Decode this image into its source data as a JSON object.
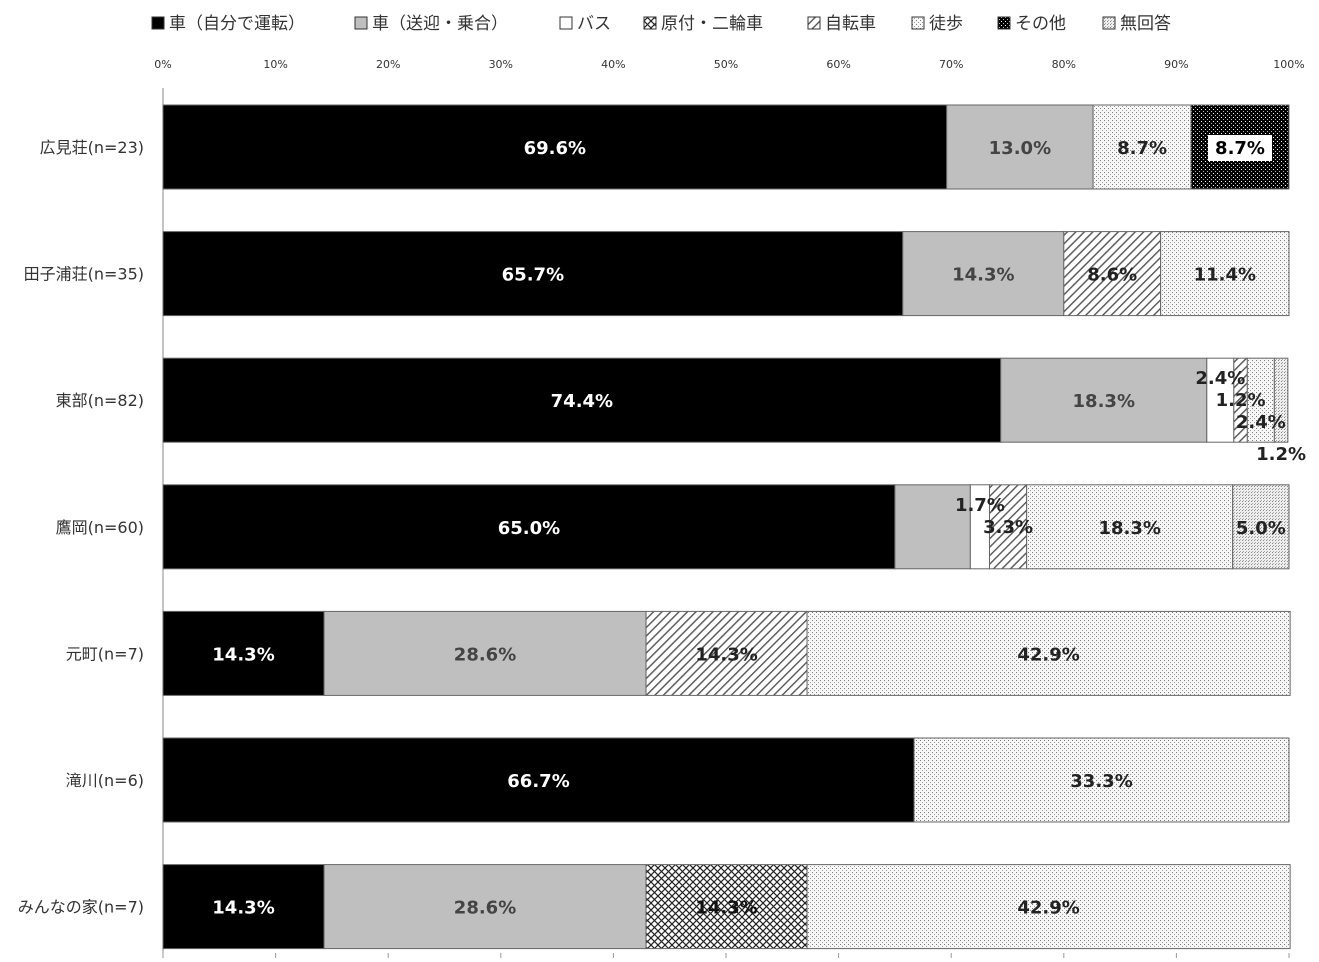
{
  "chart_data": {
    "type": "bar",
    "orientation": "horizontal",
    "stacked": "percent",
    "xlim": [
      0,
      100
    ],
    "x_ticks": [
      "0%",
      "10%",
      "20%",
      "30%",
      "40%",
      "50%",
      "60%",
      "70%",
      "80%",
      "90%",
      "100%"
    ],
    "grid": false,
    "legend_position": "top",
    "categories": [
      "広見荘(n=23)",
      "田子浦荘(n=35)",
      "東部(n=82)",
      "鷹岡(n=60)",
      "元町(n=7)",
      "滝川(n=6)",
      "みんなの家(n=7)"
    ],
    "series": [
      {
        "name": "車（自分で運転）",
        "pattern": "solid-black",
        "values": [
          69.6,
          65.7,
          74.4,
          65.0,
          14.3,
          66.7,
          14.3
        ],
        "labels": [
          "69.6%",
          "65.7%",
          "74.4%",
          "65.0%",
          "14.3%",
          "66.7%",
          "14.3%"
        ]
      },
      {
        "name": "車（送迎・乗合）",
        "pattern": "solid-gray",
        "values": [
          13.0,
          14.3,
          18.3,
          6.7,
          28.6,
          0,
          28.6
        ],
        "labels": [
          "13.0%",
          "14.3%",
          "18.3%",
          "",
          "28.6%",
          "",
          "28.6%"
        ]
      },
      {
        "name": "バス",
        "pattern": "white",
        "values": [
          0,
          0,
          2.4,
          1.7,
          0,
          0,
          0
        ],
        "labels": [
          "",
          "",
          "2.4%",
          "1.7%",
          "",
          "",
          ""
        ]
      },
      {
        "name": "原付・二輪車",
        "pattern": "cross-hatch",
        "values": [
          0,
          0,
          0,
          0,
          0,
          0,
          14.3
        ],
        "labels": [
          "",
          "",
          "",
          "",
          "",
          "",
          "14.3%"
        ]
      },
      {
        "name": "自転車",
        "pattern": "diagonal",
        "values": [
          0,
          8.6,
          1.2,
          3.3,
          14.3,
          0,
          0
        ],
        "labels": [
          "",
          "8.6%",
          "1.2%",
          "3.3%",
          "14.3%",
          "",
          ""
        ]
      },
      {
        "name": "徒歩",
        "pattern": "dots",
        "values": [
          8.7,
          11.4,
          2.4,
          18.3,
          42.9,
          33.3,
          42.9
        ],
        "labels": [
          "8.7%",
          "11.4%",
          "2.4%",
          "18.3%",
          "42.9%",
          "33.3%",
          "42.9%"
        ]
      },
      {
        "name": "その他",
        "pattern": "dense-black",
        "values": [
          8.7,
          0,
          0,
          0,
          0,
          0,
          0
        ],
        "labels": [
          "8.7%",
          "",
          "",
          "",
          "",
          "",
          ""
        ]
      },
      {
        "name": "無回答",
        "pattern": "fine-dots",
        "values": [
          0,
          0,
          1.2,
          5.0,
          0,
          0,
          0
        ],
        "labels": [
          "",
          "",
          "1.2%",
          "5.0%",
          "",
          "",
          ""
        ]
      }
    ]
  }
}
